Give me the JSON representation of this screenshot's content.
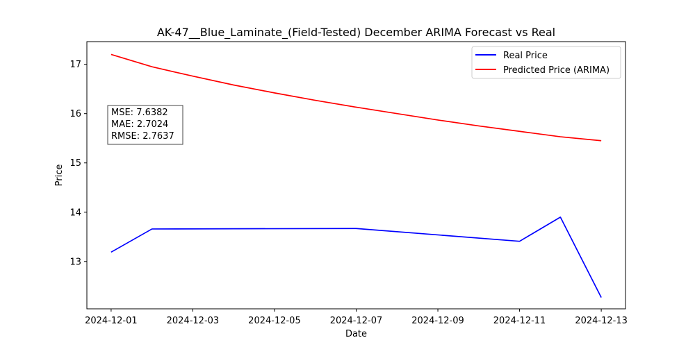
{
  "chart_data": {
    "type": "line",
    "title": "AK-47__Blue_Laminate_(Field-Tested) December ARIMA Forecast vs Real",
    "xlabel": "Date",
    "ylabel": "Price",
    "x_ticks": [
      "2024-12-01",
      "2024-12-03",
      "2024-12-05",
      "2024-12-07",
      "2024-12-09",
      "2024-12-11",
      "2024-12-13"
    ],
    "y_ticks": [
      "13",
      "14",
      "15",
      "16",
      "17"
    ],
    "xlim": [
      "2024-11-30 09:45",
      "2024-12-13 14:15"
    ],
    "ylim": [
      12.04,
      17.46
    ],
    "grid": false,
    "legend_position": "top-right",
    "series": [
      {
        "name": "Real Price",
        "color": "#0000ff",
        "points": [
          {
            "x": "2024-12-01",
            "y": 13.19
          },
          {
            "x": "2024-12-02",
            "y": 13.66
          },
          {
            "x": "2024-12-07",
            "y": 13.67
          },
          {
            "x": "2024-12-11",
            "y": 13.41
          },
          {
            "x": "2024-12-12",
            "y": 13.9
          },
          {
            "x": "2024-12-13",
            "y": 12.27
          }
        ]
      },
      {
        "name": "Predicted Price (ARIMA)",
        "color": "#ff0000",
        "points": [
          {
            "x": "2024-12-01",
            "y": 17.2
          },
          {
            "x": "2024-12-02",
            "y": 16.95
          },
          {
            "x": "2024-12-03",
            "y": 16.76
          },
          {
            "x": "2024-12-04",
            "y": 16.58
          },
          {
            "x": "2024-12-05",
            "y": 16.42
          },
          {
            "x": "2024-12-06",
            "y": 16.27
          },
          {
            "x": "2024-12-07",
            "y": 16.13
          },
          {
            "x": "2024-12-08",
            "y": 16.0
          },
          {
            "x": "2024-12-09",
            "y": 15.87
          },
          {
            "x": "2024-12-10",
            "y": 15.75
          },
          {
            "x": "2024-12-11",
            "y": 15.64
          },
          {
            "x": "2024-12-12",
            "y": 15.53
          },
          {
            "x": "2024-12-13",
            "y": 15.45
          }
        ]
      }
    ],
    "annotations": [
      "MSE: 7.6382",
      "MAE: 2.7024",
      "RMSE: 2.7637"
    ]
  }
}
